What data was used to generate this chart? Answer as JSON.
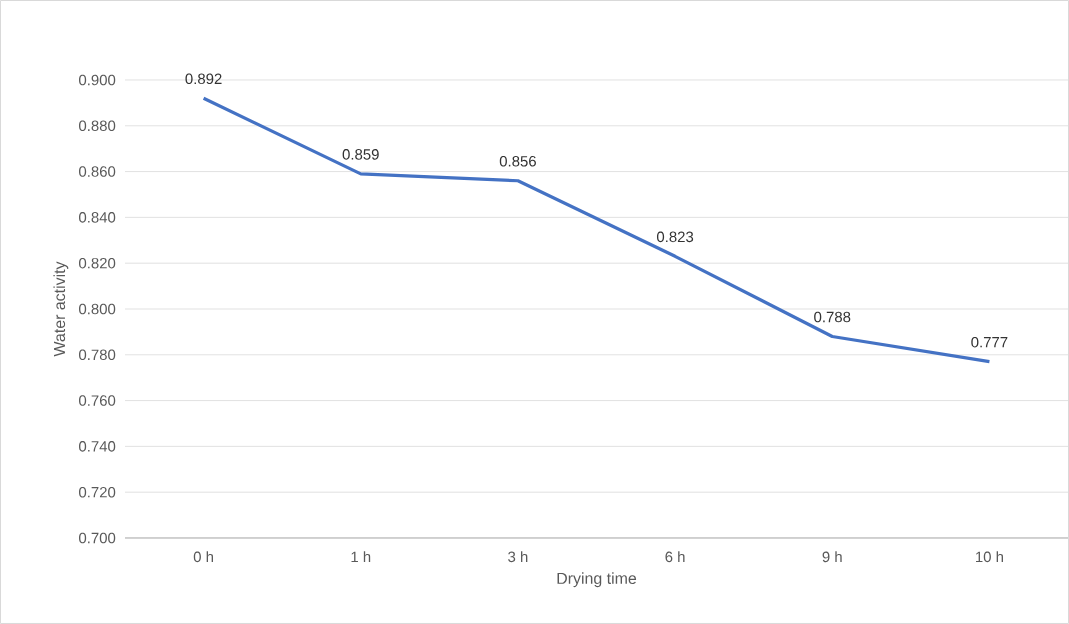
{
  "chart_data": {
    "type": "line",
    "xlabel": "Drying time",
    "ylabel": "Water activity",
    "categories": [
      "0 h",
      "1 h",
      "3 h",
      "6 h",
      "9 h",
      "10 h"
    ],
    "values": [
      0.892,
      0.859,
      0.856,
      0.823,
      0.788,
      0.777
    ],
    "color": "#4472c4",
    "ylim": [
      0.7,
      0.9
    ],
    "yticks": [
      {
        "value": 0.7,
        "label": "0.700"
      },
      {
        "value": 0.72,
        "label": "0.720"
      },
      {
        "value": 0.74,
        "label": "0.740"
      },
      {
        "value": 0.76,
        "label": "0.760"
      },
      {
        "value": 0.78,
        "label": "0.780"
      },
      {
        "value": 0.8,
        "label": "0.800"
      },
      {
        "value": 0.82,
        "label": "0.820"
      },
      {
        "value": 0.84,
        "label": "0.840"
      },
      {
        "value": 0.86,
        "label": "0.860"
      },
      {
        "value": 0.88,
        "label": "0.880"
      },
      {
        "value": 0.9,
        "label": "0.900"
      }
    ],
    "grid": "y",
    "data_labels": true
  }
}
